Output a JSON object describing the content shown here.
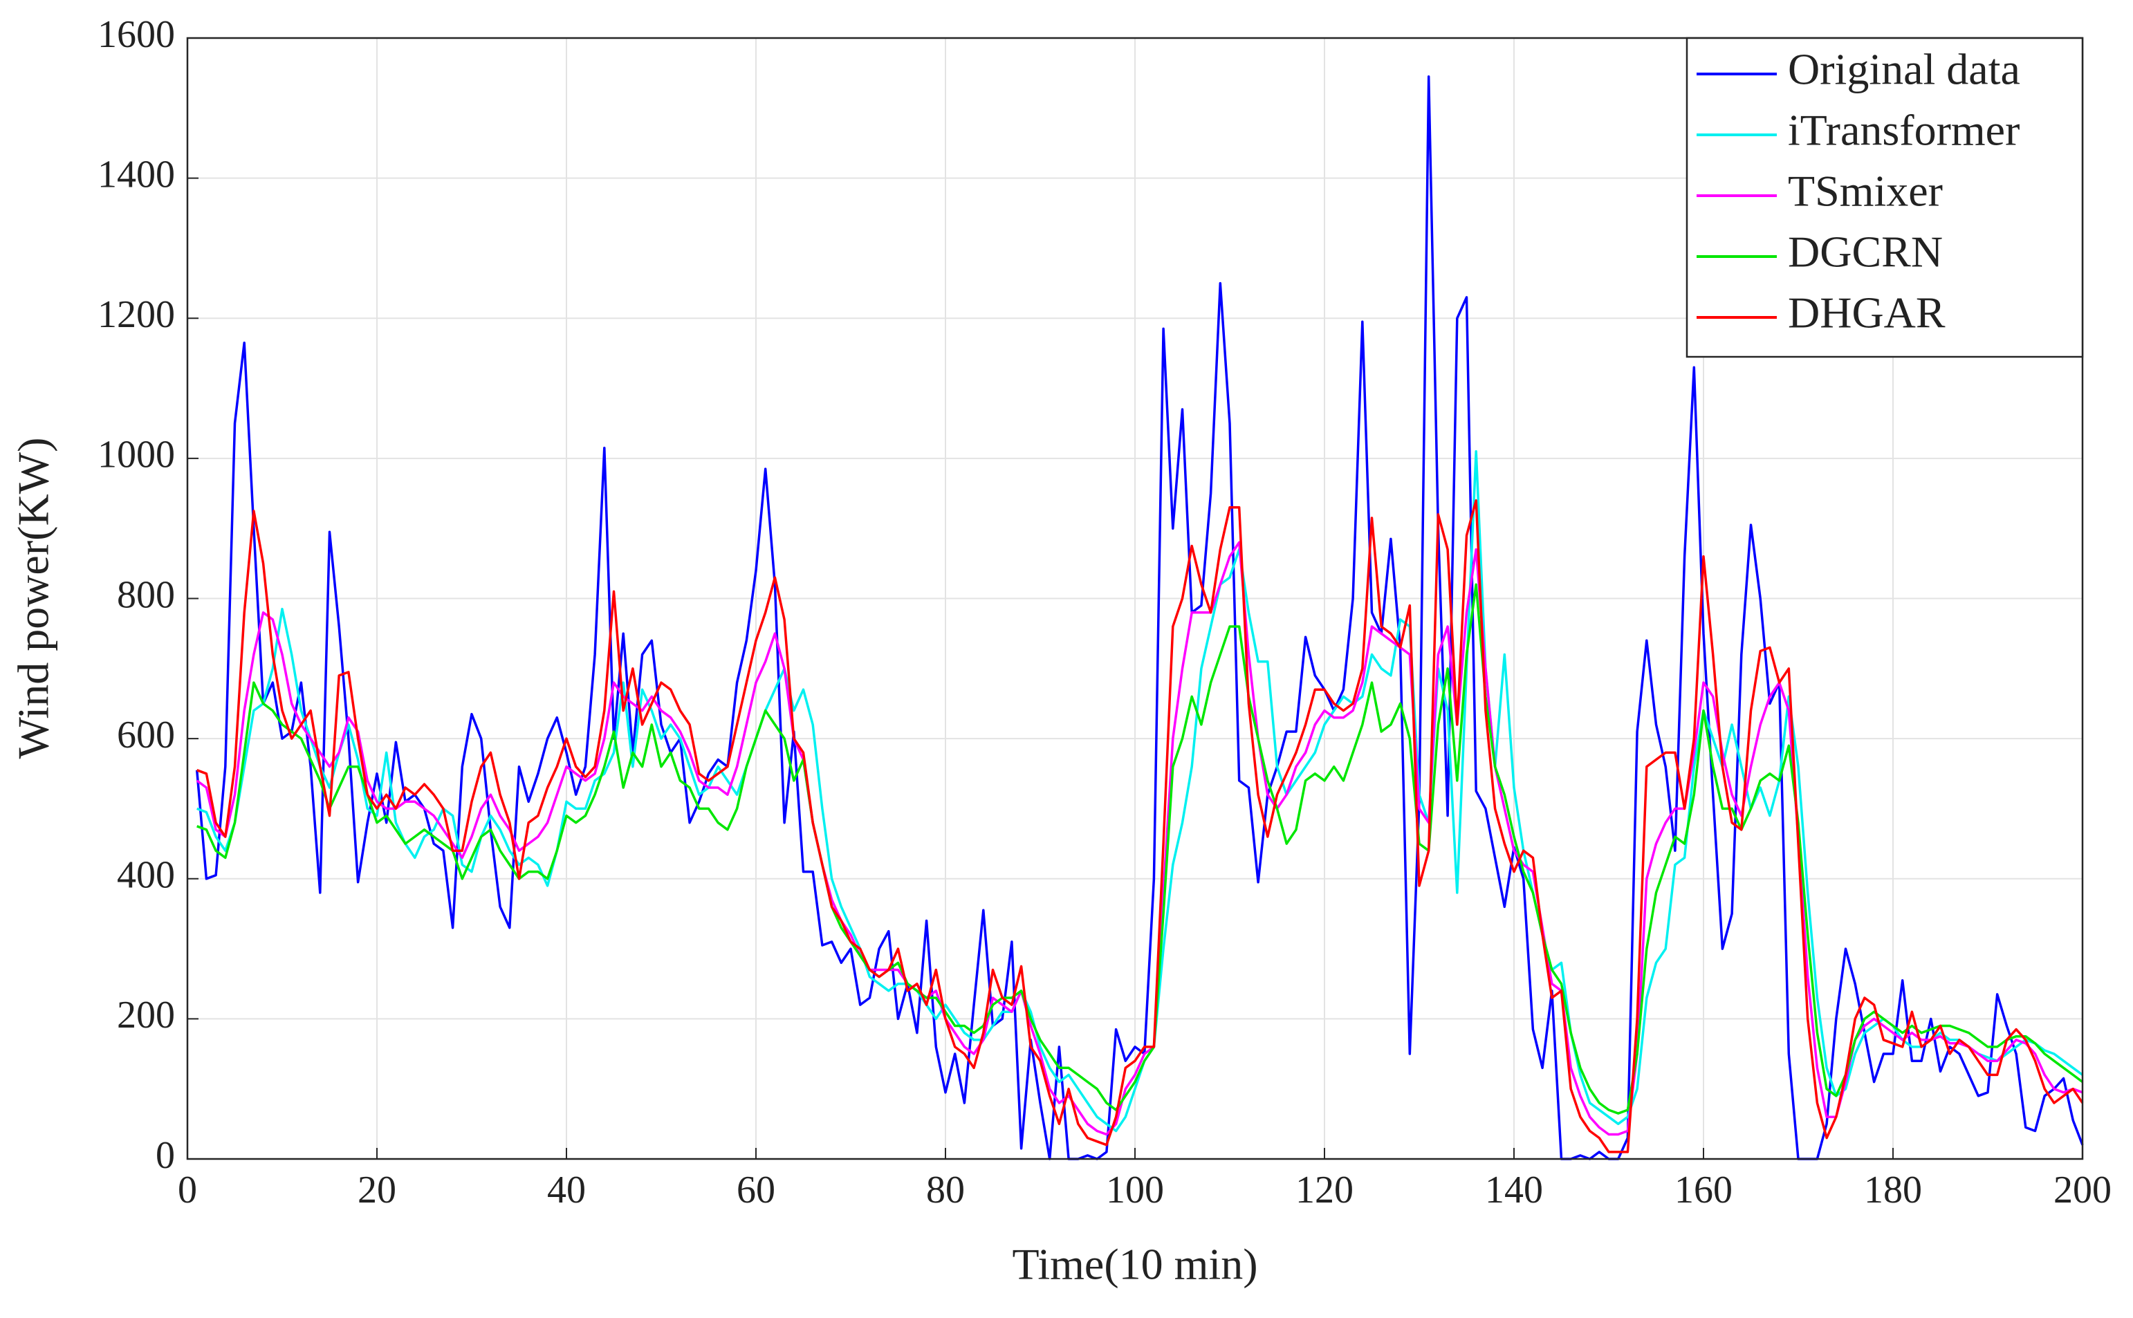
{
  "chart_data": {
    "type": "line",
    "xlabel": "Time(10 min)",
    "ylabel": "Wind power(KW)",
    "x": [
      1,
      2,
      3,
      4,
      5,
      6,
      7,
      8,
      9,
      10,
      11,
      12,
      13,
      14,
      15,
      16,
      17,
      18,
      19,
      20,
      21,
      22,
      23,
      24,
      25,
      26,
      27,
      28,
      29,
      30,
      31,
      32,
      33,
      34,
      35,
      36,
      37,
      38,
      39,
      40,
      41,
      42,
      43,
      44,
      45,
      46,
      47,
      48,
      49,
      50,
      51,
      52,
      53,
      54,
      55,
      56,
      57,
      58,
      59,
      60,
      61,
      62,
      63,
      64,
      65,
      66,
      67,
      68,
      69,
      70,
      71,
      72,
      73,
      74,
      75,
      76,
      77,
      78,
      79,
      80,
      81,
      82,
      83,
      84,
      85,
      86,
      87,
      88,
      89,
      90,
      91,
      92,
      93,
      94,
      95,
      96,
      97,
      98,
      99,
      100,
      101,
      102,
      103,
      104,
      105,
      106,
      107,
      108,
      109,
      110,
      111,
      112,
      113,
      114,
      115,
      116,
      117,
      118,
      119,
      120,
      121,
      122,
      123,
      124,
      125,
      126,
      127,
      128,
      129,
      130,
      131,
      132,
      133,
      134,
      135,
      136,
      137,
      138,
      139,
      140,
      141,
      142,
      143,
      144,
      145,
      146,
      147,
      148,
      149,
      150,
      151,
      152,
      153,
      154,
      155,
      156,
      157,
      158,
      159,
      160,
      161,
      162,
      163,
      164,
      165,
      166,
      167,
      168,
      169,
      170,
      171,
      172,
      173,
      174,
      175,
      176,
      177,
      178,
      179,
      180,
      181,
      182,
      183,
      184,
      185,
      186,
      187,
      188,
      189,
      190,
      191,
      192,
      193,
      194,
      195,
      196,
      197,
      198,
      199,
      200
    ],
    "series": [
      {
        "name": "Original data",
        "color": "#0000ff",
        "values": [
          555,
          400,
          405,
          560,
          1050,
          1165,
          900,
          650,
          680,
          600,
          610,
          680,
          560,
          380,
          895,
          760,
          600,
          395,
          480,
          550,
          480,
          595,
          510,
          520,
          500,
          450,
          440,
          330,
          560,
          635,
          600,
          470,
          360,
          330,
          560,
          510,
          550,
          600,
          630,
          580,
          520,
          560,
          720,
          1015,
          600,
          750,
          580,
          720,
          740,
          620,
          580,
          600,
          480,
          510,
          550,
          570,
          560,
          680,
          740,
          840,
          985,
          820,
          480,
          610,
          410,
          410,
          305,
          310,
          280,
          300,
          220,
          230,
          300,
          325,
          200,
          250,
          180,
          340,
          160,
          95,
          150,
          80,
          220,
          355,
          190,
          200,
          310,
          15,
          170,
          80,
          0,
          160,
          0,
          0,
          5,
          0,
          10,
          185,
          140,
          160,
          150,
          400,
          1185,
          900,
          1070,
          780,
          790,
          950,
          1250,
          1050,
          540,
          530,
          395,
          520,
          560,
          610,
          610,
          745,
          690,
          670,
          640,
          670,
          800,
          1195,
          780,
          750,
          885,
          730,
          150,
          510,
          1545,
          900,
          490,
          1200,
          1230,
          525,
          500,
          430,
          360,
          445,
          400,
          185,
          130,
          240,
          0,
          0,
          5,
          0,
          10,
          0,
          0,
          30,
          610,
          740,
          620,
          560,
          440,
          860,
          1130,
          750,
          520,
          300,
          350,
          720,
          905,
          800,
          650,
          680,
          150,
          0,
          0,
          0,
          50,
          200,
          300,
          250,
          180,
          110,
          150,
          150,
          255,
          140,
          140,
          200,
          125,
          160,
          150,
          120,
          90,
          95,
          235,
          190,
          150,
          45,
          40,
          90,
          100,
          115,
          55,
          20
        ]
      },
      {
        "name": "iTransformer",
        "color": "#00f0f0",
        "values": [
          500,
          495,
          460,
          440,
          480,
          560,
          640,
          650,
          700,
          785,
          720,
          640,
          600,
          560,
          530,
          580,
          620,
          570,
          500,
          490,
          580,
          480,
          450,
          430,
          460,
          470,
          500,
          490,
          420,
          410,
          460,
          490,
          470,
          440,
          420,
          430,
          420,
          390,
          440,
          510,
          500,
          500,
          540,
          550,
          580,
          680,
          560,
          670,
          640,
          600,
          620,
          600,
          560,
          520,
          530,
          560,
          540,
          520,
          560,
          600,
          640,
          670,
          700,
          640,
          670,
          620,
          500,
          400,
          360,
          330,
          300,
          260,
          250,
          240,
          250,
          250,
          240,
          220,
          200,
          220,
          200,
          180,
          170,
          170,
          190,
          210,
          210,
          240,
          210,
          160,
          130,
          110,
          120,
          100,
          80,
          60,
          50,
          40,
          60,
          100,
          140,
          160,
          300,
          420,
          480,
          560,
          700,
          760,
          820,
          830,
          870,
          780,
          710,
          710,
          560,
          520,
          540,
          560,
          580,
          620,
          640,
          660,
          650,
          660,
          720,
          700,
          690,
          770,
          760,
          520,
          480,
          700,
          640,
          380,
          700,
          1010,
          700,
          560,
          720,
          530,
          440,
          380,
          320,
          270,
          280,
          180,
          120,
          80,
          70,
          60,
          50,
          60,
          100,
          230,
          280,
          300,
          420,
          430,
          560,
          640,
          600,
          560,
          620,
          560,
          500,
          530,
          490,
          540,
          660,
          560,
          380,
          230,
          130,
          90,
          100,
          150,
          180,
          190,
          200,
          190,
          170,
          160,
          160,
          170,
          180,
          170,
          170,
          160,
          150,
          145,
          140,
          150,
          160,
          170,
          165,
          155,
          150,
          140,
          130,
          120
        ]
      },
      {
        "name": "TSmixer",
        "color": "#ff00ff",
        "values": [
          540,
          530,
          470,
          460,
          520,
          640,
          720,
          780,
          770,
          720,
          650,
          620,
          600,
          580,
          560,
          580,
          630,
          610,
          540,
          510,
          500,
          500,
          510,
          510,
          500,
          490,
          470,
          450,
          430,
          460,
          500,
          520,
          490,
          470,
          440,
          450,
          460,
          480,
          520,
          560,
          550,
          540,
          550,
          600,
          680,
          660,
          650,
          640,
          660,
          640,
          630,
          610,
          580,
          540,
          530,
          530,
          520,
          560,
          620,
          680,
          710,
          750,
          700,
          600,
          570,
          480,
          420,
          370,
          340,
          320,
          290,
          270,
          270,
          270,
          270,
          250,
          240,
          230,
          240,
          200,
          180,
          160,
          150,
          170,
          230,
          220,
          210,
          240,
          190,
          150,
          100,
          80,
          90,
          70,
          50,
          40,
          35,
          50,
          100,
          120,
          150,
          160,
          380,
          600,
          700,
          780,
          780,
          780,
          820,
          860,
          880,
          720,
          600,
          520,
          500,
          520,
          560,
          580,
          620,
          640,
          630,
          630,
          640,
          680,
          760,
          750,
          740,
          730,
          720,
          500,
          480,
          720,
          760,
          620,
          780,
          870,
          700,
          560,
          500,
          440,
          420,
          410,
          330,
          250,
          240,
          130,
          90,
          60,
          45,
          35,
          35,
          40,
          150,
          400,
          450,
          480,
          500,
          500,
          580,
          680,
          660,
          580,
          520,
          490,
          560,
          620,
          660,
          680,
          640,
          460,
          260,
          130,
          60,
          60,
          110,
          170,
          190,
          200,
          190,
          180,
          170,
          180,
          170,
          170,
          175,
          165,
          165,
          160,
          150,
          140,
          140,
          155,
          170,
          165,
          150,
          120,
          100,
          95,
          100,
          95
        ]
      },
      {
        "name": "DGCRN",
        "color": "#00e600",
        "values": [
          475,
          470,
          440,
          430,
          480,
          580,
          680,
          650,
          640,
          620,
          610,
          600,
          570,
          540,
          500,
          530,
          560,
          560,
          520,
          480,
          490,
          470,
          450,
          460,
          470,
          460,
          450,
          440,
          400,
          430,
          460,
          470,
          440,
          420,
          400,
          410,
          410,
          400,
          440,
          490,
          480,
          490,
          520,
          560,
          610,
          530,
          580,
          560,
          620,
          560,
          580,
          540,
          530,
          500,
          500,
          480,
          470,
          500,
          560,
          600,
          640,
          620,
          600,
          540,
          570,
          480,
          420,
          360,
          330,
          310,
          290,
          270,
          260,
          270,
          280,
          250,
          240,
          230,
          230,
          210,
          190,
          190,
          180,
          190,
          220,
          230,
          230,
          240,
          200,
          170,
          150,
          130,
          130,
          120,
          110,
          100,
          80,
          70,
          90,
          110,
          140,
          160,
          350,
          560,
          600,
          660,
          620,
          680,
          720,
          760,
          760,
          660,
          600,
          540,
          500,
          450,
          470,
          540,
          550,
          540,
          560,
          540,
          580,
          620,
          680,
          610,
          620,
          650,
          600,
          450,
          440,
          620,
          700,
          540,
          720,
          820,
          660,
          560,
          520,
          460,
          410,
          380,
          320,
          270,
          250,
          180,
          130,
          100,
          80,
          70,
          65,
          70,
          150,
          300,
          380,
          420,
          460,
          450,
          520,
          640,
          560,
          500,
          500,
          470,
          500,
          540,
          550,
          540,
          590,
          480,
          320,
          180,
          100,
          90,
          120,
          170,
          200,
          210,
          200,
          190,
          180,
          190,
          180,
          185,
          190,
          190,
          185,
          180,
          170,
          160,
          160,
          170,
          175,
          175,
          165,
          150,
          140,
          130,
          120,
          110
        ]
      },
      {
        "name": "DHGAR",
        "color": "#ff0000",
        "values": [
          555,
          550,
          480,
          460,
          560,
          780,
          925,
          850,
          720,
          640,
          600,
          620,
          640,
          560,
          490,
          690,
          695,
          600,
          520,
          500,
          520,
          500,
          530,
          520,
          535,
          520,
          500,
          440,
          440,
          510,
          560,
          580,
          520,
          480,
          400,
          480,
          490,
          530,
          560,
          600,
          560,
          545,
          560,
          640,
          810,
          640,
          700,
          620,
          650,
          680,
          670,
          640,
          620,
          550,
          540,
          550,
          560,
          620,
          680,
          740,
          780,
          830,
          770,
          600,
          580,
          480,
          420,
          360,
          340,
          310,
          300,
          270,
          260,
          270,
          300,
          240,
          250,
          220,
          270,
          200,
          160,
          150,
          130,
          180,
          270,
          230,
          220,
          275,
          160,
          140,
          90,
          50,
          100,
          50,
          30,
          25,
          20,
          60,
          130,
          140,
          160,
          160,
          450,
          760,
          800,
          875,
          820,
          780,
          870,
          930,
          930,
          650,
          520,
          460,
          520,
          550,
          580,
          620,
          670,
          670,
          650,
          640,
          650,
          700,
          915,
          760,
          750,
          730,
          790,
          390,
          440,
          920,
          870,
          620,
          890,
          940,
          640,
          500,
          450,
          410,
          440,
          430,
          320,
          230,
          240,
          100,
          60,
          40,
          30,
          10,
          10,
          10,
          200,
          560,
          570,
          580,
          580,
          500,
          600,
          860,
          720,
          560,
          480,
          470,
          640,
          725,
          730,
          680,
          700,
          450,
          200,
          80,
          30,
          60,
          120,
          200,
          230,
          220,
          170,
          165,
          160,
          210,
          160,
          170,
          190,
          150,
          170,
          160,
          140,
          120,
          120,
          170,
          185,
          170,
          140,
          100,
          80,
          90,
          100,
          80
        ]
      }
    ],
    "xlim": [
      0,
      200
    ],
    "xticks": [
      0,
      20,
      40,
      60,
      80,
      100,
      120,
      140,
      160,
      180,
      200
    ],
    "ylim": [
      0,
      1600
    ],
    "yticks": [
      0,
      200,
      400,
      600,
      800,
      1000,
      1200,
      1400,
      1600
    ],
    "grid": true,
    "legend": "northeast"
  }
}
